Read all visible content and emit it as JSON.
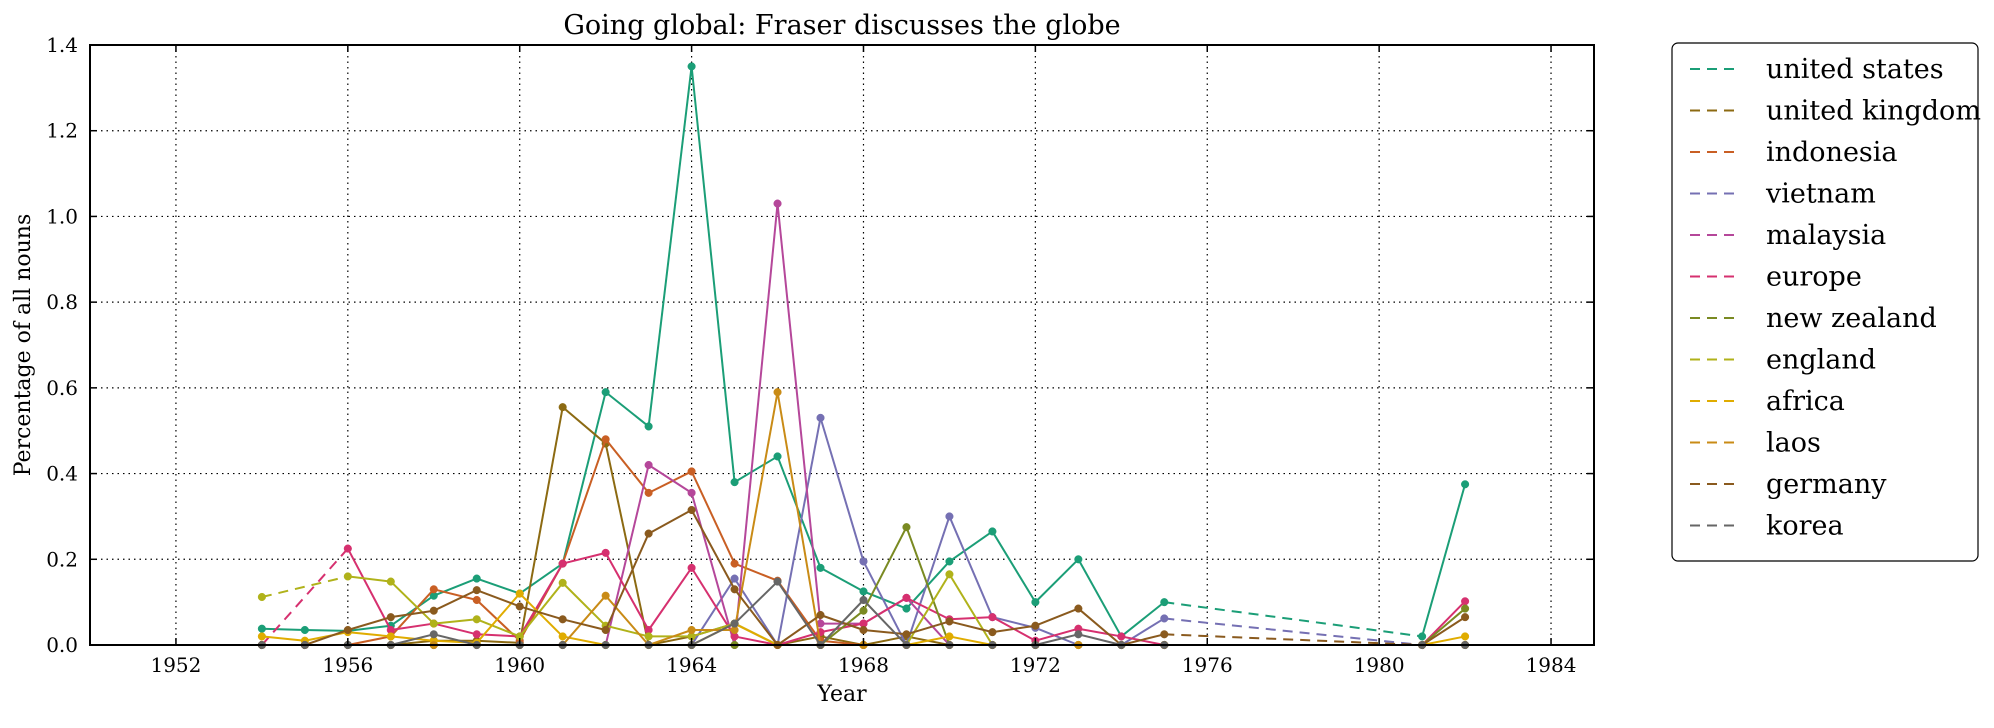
{
  "chart_data": {
    "type": "line",
    "title": "Going global: Fraser discusses the globe",
    "xlabel": "Year",
    "ylabel": "Percentage of all nouns",
    "xlim": [
      1950,
      1985
    ],
    "ylim": [
      0,
      1.4
    ],
    "xticks": [
      1952,
      1956,
      1960,
      1964,
      1968,
      1972,
      1976,
      1980,
      1984
    ],
    "yticks": [
      0.0,
      0.2,
      0.4,
      0.6,
      0.8,
      1.0,
      1.2,
      1.4
    ],
    "xtick_labels": [
      "1952",
      "1956",
      "1960",
      "1964",
      "1968",
      "1972",
      "1976",
      "1980",
      "1984"
    ],
    "ytick_labels": [
      "0.0",
      "0.2",
      "0.4",
      "0.6",
      "0.8",
      "1.0",
      "1.2",
      "1.4"
    ],
    "grid": true,
    "legend_position": "outside-right",
    "gap_style": "dashed",
    "series": [
      {
        "name": "united states",
        "color": "#1b9e77",
        "points": [
          [
            1954,
            0.038
          ],
          [
            1955,
            0.035
          ],
          [
            1956,
            0.033
          ],
          [
            1957,
            0.045
          ],
          [
            1958,
            0.115
          ],
          [
            1959,
            0.155
          ],
          [
            1960,
            0.12
          ],
          [
            1961,
            0.19
          ],
          [
            1962,
            0.59
          ],
          [
            1963,
            0.51
          ],
          [
            1964,
            1.35
          ],
          [
            1965,
            0.38
          ],
          [
            1966,
            0.44
          ],
          [
            1967,
            0.18
          ],
          [
            1968,
            0.125
          ],
          [
            1969,
            0.085
          ],
          [
            1970,
            0.195
          ],
          [
            1971,
            0.265
          ],
          [
            1972,
            0.1
          ],
          [
            1973,
            0.2
          ],
          [
            1974,
            0.02
          ],
          [
            1975,
            0.1
          ],
          [
            1981,
            0.02
          ],
          [
            1982,
            0.375
          ]
        ]
      },
      {
        "name": "united kingdom",
        "color": "#8c6a12",
        "points": [
          [
            1954,
            0.0
          ],
          [
            1955,
            0.0
          ],
          [
            1956,
            0.0
          ],
          [
            1957,
            0.0
          ],
          [
            1958,
            0.01
          ],
          [
            1959,
            0.01
          ],
          [
            1960,
            0.005
          ],
          [
            1961,
            0.555
          ],
          [
            1962,
            0.47
          ],
          [
            1963,
            0.0
          ],
          [
            1964,
            0.02
          ],
          [
            1965,
            0.05
          ],
          [
            1966,
            0.0
          ],
          [
            1967,
            0.02
          ],
          [
            1968,
            0.0
          ],
          [
            1969,
            0.02
          ],
          [
            1970,
            0.0
          ],
          [
            1971,
            0.0
          ],
          [
            1972,
            0.0
          ],
          [
            1973,
            0.0
          ],
          [
            1974,
            0.0
          ],
          [
            1975,
            0.0
          ],
          [
            1981,
            0.0
          ],
          [
            1982,
            0.0
          ]
        ]
      },
      {
        "name": "indonesia",
        "color": "#c95f24",
        "points": [
          [
            1954,
            0.0
          ],
          [
            1955,
            0.0
          ],
          [
            1956,
            0.0
          ],
          [
            1957,
            0.02
          ],
          [
            1958,
            0.13
          ],
          [
            1959,
            0.105
          ],
          [
            1960,
            0.01
          ],
          [
            1961,
            0.19
          ],
          [
            1962,
            0.48
          ],
          [
            1963,
            0.355
          ],
          [
            1964,
            0.405
          ],
          [
            1965,
            0.19
          ],
          [
            1966,
            0.15
          ],
          [
            1967,
            0.01
          ],
          [
            1968,
            0.0
          ],
          [
            1969,
            0.0
          ],
          [
            1970,
            0.0
          ],
          [
            1971,
            0.0
          ],
          [
            1972,
            0.0
          ],
          [
            1973,
            0.0
          ],
          [
            1974,
            0.0
          ],
          [
            1975,
            0.0
          ],
          [
            1981,
            0.0
          ],
          [
            1982,
            0.0
          ]
        ]
      },
      {
        "name": "vietnam",
        "color": "#7570b3",
        "points": [
          [
            1954,
            0.0
          ],
          [
            1955,
            0.0
          ],
          [
            1956,
            0.0
          ],
          [
            1957,
            0.0
          ],
          [
            1958,
            0.0
          ],
          [
            1959,
            0.0
          ],
          [
            1960,
            0.0
          ],
          [
            1961,
            0.0
          ],
          [
            1962,
            0.0
          ],
          [
            1963,
            0.0
          ],
          [
            1964,
            0.0
          ],
          [
            1965,
            0.155
          ],
          [
            1966,
            0.0
          ],
          [
            1967,
            0.53
          ],
          [
            1968,
            0.195
          ],
          [
            1969,
            0.0
          ],
          [
            1970,
            0.3
          ],
          [
            1971,
            0.065
          ],
          [
            1972,
            0.04
          ],
          [
            1973,
            0.0
          ],
          [
            1974,
            0.0
          ],
          [
            1975,
            0.062
          ],
          [
            1981,
            0.0
          ],
          [
            1982,
            0.0
          ]
        ]
      },
      {
        "name": "malaysia",
        "color": "#b5479a",
        "points": [
          [
            1954,
            0.0
          ],
          [
            1955,
            0.0
          ],
          [
            1956,
            0.0
          ],
          [
            1957,
            0.0
          ],
          [
            1958,
            0.0
          ],
          [
            1959,
            0.0
          ],
          [
            1960,
            0.0
          ],
          [
            1961,
            0.0
          ],
          [
            1962,
            0.0
          ],
          [
            1963,
            0.42
          ],
          [
            1964,
            0.355
          ],
          [
            1965,
            0.0
          ],
          [
            1966,
            1.03
          ],
          [
            1967,
            0.05
          ],
          [
            1968,
            0.05
          ],
          [
            1969,
            0.11
          ],
          [
            1970,
            0.0
          ],
          [
            1971,
            0.0
          ],
          [
            1972,
            0.0
          ],
          [
            1973,
            0.0
          ],
          [
            1974,
            0.0
          ],
          [
            1975,
            0.0
          ],
          [
            1981,
            0.0
          ],
          [
            1982,
            0.0
          ]
        ]
      },
      {
        "name": "europe",
        "color": "#d6306f",
        "points": [
          [
            1954,
            0.0
          ],
          [
            1956,
            0.225
          ],
          [
            1957,
            0.035
          ],
          [
            1958,
            0.05
          ],
          [
            1959,
            0.025
          ],
          [
            1960,
            0.02
          ],
          [
            1961,
            0.19
          ],
          [
            1962,
            0.215
          ],
          [
            1963,
            0.035
          ],
          [
            1964,
            0.18
          ],
          [
            1965,
            0.02
          ],
          [
            1966,
            0.0
          ],
          [
            1967,
            0.03
          ],
          [
            1968,
            0.05
          ],
          [
            1969,
            0.11
          ],
          [
            1970,
            0.06
          ],
          [
            1971,
            0.065
          ],
          [
            1972,
            0.01
          ],
          [
            1973,
            0.038
          ],
          [
            1974,
            0.02
          ],
          [
            1975,
            0.0
          ],
          [
            1981,
            0.0
          ],
          [
            1982,
            0.102
          ]
        ]
      },
      {
        "name": "new zealand",
        "color": "#7a8a22",
        "points": [
          [
            1954,
            0.0
          ],
          [
            1955,
            0.0
          ],
          [
            1956,
            0.0
          ],
          [
            1957,
            0.0
          ],
          [
            1958,
            0.0
          ],
          [
            1959,
            0.0
          ],
          [
            1960,
            0.0
          ],
          [
            1961,
            0.0
          ],
          [
            1962,
            0.0
          ],
          [
            1963,
            0.0
          ],
          [
            1964,
            0.0
          ],
          [
            1965,
            0.0
          ],
          [
            1966,
            0.0
          ],
          [
            1967,
            0.0
          ],
          [
            1968,
            0.08
          ],
          [
            1969,
            0.275
          ],
          [
            1970,
            0.0
          ],
          [
            1971,
            0.0
          ],
          [
            1972,
            0.0
          ],
          [
            1973,
            0.0
          ],
          [
            1974,
            0.0
          ],
          [
            1975,
            0.0
          ],
          [
            1981,
            0.0
          ],
          [
            1982,
            0.085
          ]
        ]
      },
      {
        "name": "england",
        "color": "#b0b21a",
        "points": [
          [
            1954,
            0.112
          ],
          [
            1956,
            0.16
          ],
          [
            1957,
            0.148
          ],
          [
            1958,
            0.05
          ],
          [
            1959,
            0.06
          ],
          [
            1960,
            0.02
          ],
          [
            1961,
            0.145
          ],
          [
            1962,
            0.045
          ],
          [
            1963,
            0.02
          ],
          [
            1964,
            0.02
          ],
          [
            1965,
            0.05
          ],
          [
            1966,
            0.0
          ],
          [
            1967,
            0.0
          ],
          [
            1968,
            0.0
          ],
          [
            1969,
            0.0
          ],
          [
            1970,
            0.165
          ],
          [
            1971,
            0.0
          ],
          [
            1972,
            0.0
          ],
          [
            1973,
            0.0
          ],
          [
            1974,
            0.0
          ],
          [
            1975,
            0.0
          ],
          [
            1981,
            0.0
          ],
          [
            1982,
            0.0
          ]
        ]
      },
      {
        "name": "africa",
        "color": "#e0ac00",
        "points": [
          [
            1954,
            0.02
          ],
          [
            1955,
            0.01
          ],
          [
            1956,
            0.03
          ],
          [
            1957,
            0.02
          ],
          [
            1958,
            0.01
          ],
          [
            1959,
            0.005
          ],
          [
            1960,
            0.12
          ],
          [
            1961,
            0.02
          ],
          [
            1962,
            0.0
          ],
          [
            1963,
            0.0
          ],
          [
            1964,
            0.0
          ],
          [
            1965,
            0.05
          ],
          [
            1966,
            0.0
          ],
          [
            1967,
            0.0
          ],
          [
            1968,
            0.0
          ],
          [
            1969,
            0.0
          ],
          [
            1970,
            0.02
          ],
          [
            1971,
            0.0
          ],
          [
            1972,
            0.0
          ],
          [
            1973,
            0.0
          ],
          [
            1974,
            0.0
          ],
          [
            1975,
            0.0
          ],
          [
            1981,
            0.0
          ],
          [
            1982,
            0.02
          ]
        ]
      },
      {
        "name": "laos",
        "color": "#c98b16",
        "points": [
          [
            1954,
            0.0
          ],
          [
            1955,
            0.0
          ],
          [
            1956,
            0.0
          ],
          [
            1957,
            0.0
          ],
          [
            1958,
            0.0
          ],
          [
            1959,
            0.0
          ],
          [
            1960,
            0.0
          ],
          [
            1961,
            0.0
          ],
          [
            1962,
            0.115
          ],
          [
            1963,
            0.0
          ],
          [
            1964,
            0.035
          ],
          [
            1965,
            0.035
          ],
          [
            1966,
            0.59
          ],
          [
            1967,
            0.0
          ],
          [
            1968,
            0.0
          ],
          [
            1969,
            0.0
          ],
          [
            1970,
            0.0
          ],
          [
            1971,
            0.0
          ],
          [
            1972,
            0.0
          ],
          [
            1973,
            0.0
          ],
          [
            1974,
            0.0
          ],
          [
            1975,
            0.0
          ],
          [
            1981,
            0.0
          ],
          [
            1982,
            0.0
          ]
        ]
      },
      {
        "name": "germany",
        "color": "#8a5a1e",
        "points": [
          [
            1954,
            0.0
          ],
          [
            1955,
            0.0
          ],
          [
            1956,
            0.035
          ],
          [
            1957,
            0.065
          ],
          [
            1958,
            0.08
          ],
          [
            1959,
            0.128
          ],
          [
            1960,
            0.09
          ],
          [
            1961,
            0.06
          ],
          [
            1962,
            0.035
          ],
          [
            1963,
            0.26
          ],
          [
            1964,
            0.315
          ],
          [
            1965,
            0.13
          ],
          [
            1966,
            0.0
          ],
          [
            1967,
            0.07
          ],
          [
            1968,
            0.035
          ],
          [
            1969,
            0.025
          ],
          [
            1970,
            0.055
          ],
          [
            1971,
            0.03
          ],
          [
            1972,
            0.045
          ],
          [
            1973,
            0.085
          ],
          [
            1974,
            0.0
          ],
          [
            1975,
            0.025
          ],
          [
            1981,
            0.0
          ],
          [
            1982,
            0.065
          ]
        ]
      },
      {
        "name": "korea",
        "color": "#666666",
        "points": [
          [
            1954,
            0.0
          ],
          [
            1955,
            0.0
          ],
          [
            1956,
            0.0
          ],
          [
            1957,
            0.0
          ],
          [
            1958,
            0.025
          ],
          [
            1959,
            0.0
          ],
          [
            1960,
            0.0
          ],
          [
            1961,
            0.0
          ],
          [
            1962,
            0.0
          ],
          [
            1963,
            0.0
          ],
          [
            1964,
            0.0
          ],
          [
            1965,
            0.05
          ],
          [
            1966,
            0.148
          ],
          [
            1967,
            0.0
          ],
          [
            1968,
            0.105
          ],
          [
            1969,
            0.0
          ],
          [
            1970,
            0.0
          ],
          [
            1971,
            0.0
          ],
          [
            1972,
            0.0
          ],
          [
            1973,
            0.025
          ],
          [
            1974,
            0.0
          ],
          [
            1975,
            0.0
          ],
          [
            1981,
            0.0
          ],
          [
            1982,
            0.0
          ]
        ]
      }
    ]
  }
}
